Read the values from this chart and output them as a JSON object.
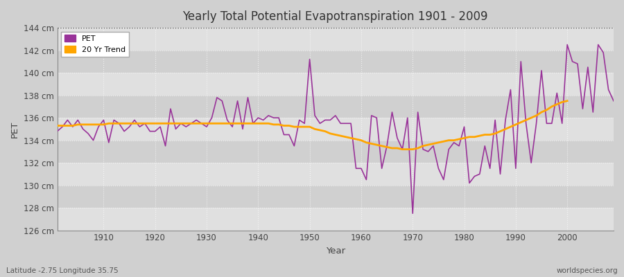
{
  "title": "Yearly Total Potential Evapotranspiration 1901 - 2009",
  "xlabel": "Year",
  "ylabel": "PET",
  "bottom_left_label": "Latitude -2.75 Longitude 35.75",
  "bottom_right_label": "worldspecies.org",
  "pet_color": "#993399",
  "trend_color": "#ffa500",
  "fig_bg_color": "#d0d0d0",
  "plot_bg_color": "#d8d8d8",
  "band_color_light": "#e0e0e0",
  "band_color_dark": "#d0d0d0",
  "ylim": [
    126,
    144
  ],
  "xlim": [
    1901,
    2009
  ],
  "yticks": [
    126,
    128,
    130,
    132,
    134,
    136,
    138,
    140,
    142,
    144
  ],
  "xticks": [
    1910,
    1920,
    1930,
    1940,
    1950,
    1960,
    1970,
    1980,
    1990,
    2000
  ],
  "years": [
    1901,
    1902,
    1903,
    1904,
    1905,
    1906,
    1907,
    1908,
    1909,
    1910,
    1911,
    1912,
    1913,
    1914,
    1915,
    1916,
    1917,
    1918,
    1919,
    1920,
    1921,
    1922,
    1923,
    1924,
    1925,
    1926,
    1927,
    1928,
    1929,
    1930,
    1931,
    1932,
    1933,
    1934,
    1935,
    1936,
    1937,
    1938,
    1939,
    1940,
    1941,
    1942,
    1943,
    1944,
    1945,
    1946,
    1947,
    1948,
    1949,
    1950,
    1951,
    1952,
    1953,
    1954,
    1955,
    1956,
    1957,
    1958,
    1959,
    1960,
    1961,
    1962,
    1963,
    1964,
    1965,
    1966,
    1967,
    1968,
    1969,
    1970,
    1971,
    1972,
    1973,
    1974,
    1975,
    1976,
    1977,
    1978,
    1979,
    1980,
    1981,
    1982,
    1983,
    1984,
    1985,
    1986,
    1987,
    1988,
    1989,
    1990,
    1991,
    1992,
    1993,
    1994,
    1995,
    1996,
    1997,
    1998,
    1999,
    2000,
    2001,
    2002,
    2003,
    2004,
    2005,
    2006,
    2007,
    2008,
    2009
  ],
  "pet_values": [
    134.8,
    135.2,
    135.8,
    135.2,
    135.8,
    135.0,
    134.6,
    134.0,
    135.2,
    135.8,
    133.8,
    135.8,
    135.5,
    134.8,
    135.2,
    135.8,
    135.2,
    135.5,
    134.8,
    134.8,
    135.2,
    133.5,
    136.8,
    135.0,
    135.5,
    135.2,
    135.5,
    135.8,
    135.5,
    135.2,
    136.0,
    137.8,
    137.5,
    135.8,
    135.2,
    137.5,
    135.0,
    137.8,
    135.5,
    136.0,
    135.8,
    136.2,
    136.0,
    136.0,
    134.5,
    134.5,
    133.5,
    135.8,
    135.5,
    141.2,
    136.2,
    135.5,
    135.8,
    135.8,
    136.2,
    135.5,
    135.5,
    135.5,
    131.5,
    131.5,
    130.5,
    136.2,
    136.0,
    131.5,
    133.5,
    136.5,
    134.2,
    133.2,
    136.0,
    127.5,
    136.5,
    133.2,
    133.0,
    133.5,
    131.5,
    130.5,
    133.2,
    133.8,
    133.5,
    135.2,
    130.2,
    130.8,
    131.0,
    133.5,
    131.5,
    135.8,
    131.0,
    135.8,
    138.5,
    131.5,
    141.0,
    135.5,
    132.0,
    135.5,
    140.2,
    135.5,
    135.5,
    138.2,
    135.5,
    142.5,
    141.0,
    140.8,
    136.8,
    140.5,
    136.5,
    142.5,
    141.8,
    138.5,
    137.5
  ],
  "trend_values": [
    135.3,
    135.3,
    135.3,
    135.3,
    135.4,
    135.4,
    135.4,
    135.4,
    135.4,
    135.4,
    135.5,
    135.5,
    135.5,
    135.5,
    135.5,
    135.5,
    135.5,
    135.5,
    135.5,
    135.5,
    135.5,
    135.5,
    135.5,
    135.5,
    135.5,
    135.5,
    135.5,
    135.5,
    135.5,
    135.5,
    135.5,
    135.5,
    135.5,
    135.5,
    135.5,
    135.5,
    135.5,
    135.5,
    135.5,
    135.5,
    135.5,
    135.5,
    135.4,
    135.4,
    135.3,
    135.3,
    135.2,
    135.2,
    135.2,
    135.2,
    135.0,
    134.9,
    134.8,
    134.6,
    134.5,
    134.4,
    134.3,
    134.2,
    134.1,
    134.0,
    133.8,
    133.7,
    133.6,
    133.5,
    133.4,
    133.3,
    133.3,
    133.2,
    133.2,
    133.2,
    133.3,
    133.5,
    133.6,
    133.7,
    133.8,
    133.9,
    134.0,
    134.0,
    134.1,
    134.2,
    134.3,
    134.3,
    134.4,
    134.5,
    134.5,
    134.6,
    134.8,
    135.0,
    135.2,
    135.4,
    135.6,
    135.8,
    136.0,
    136.2,
    136.5,
    136.7,
    137.0,
    137.2,
    137.4,
    137.5
  ],
  "dotted_line_y": 144
}
